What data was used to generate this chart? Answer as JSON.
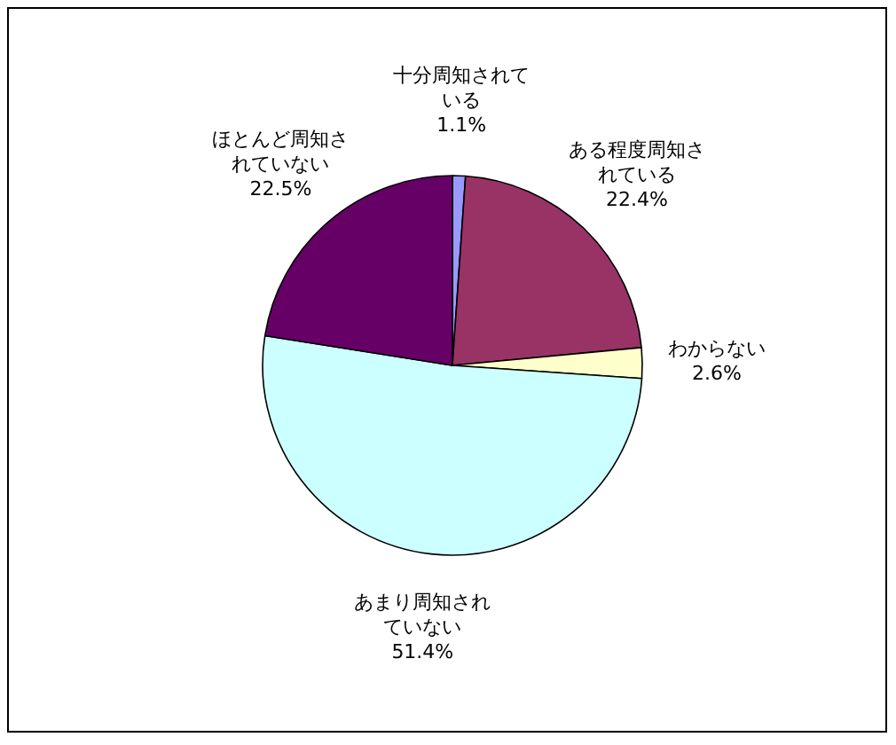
{
  "chart_data": {
    "type": "pie",
    "categories": [
      "十分周知されている",
      "ある程度周知されている",
      "わからない",
      "あまり周知されていない",
      "ほとんど周知されていない"
    ],
    "values": [
      1.1,
      22.4,
      2.6,
      51.4,
      22.5
    ],
    "value_labels": [
      "1.1%",
      "22.4%",
      "2.6%",
      "51.4%",
      "22.5%"
    ],
    "colors": [
      "#9999ff",
      "#993366",
      "#ffffcc",
      "#ccffff",
      "#660066"
    ]
  }
}
